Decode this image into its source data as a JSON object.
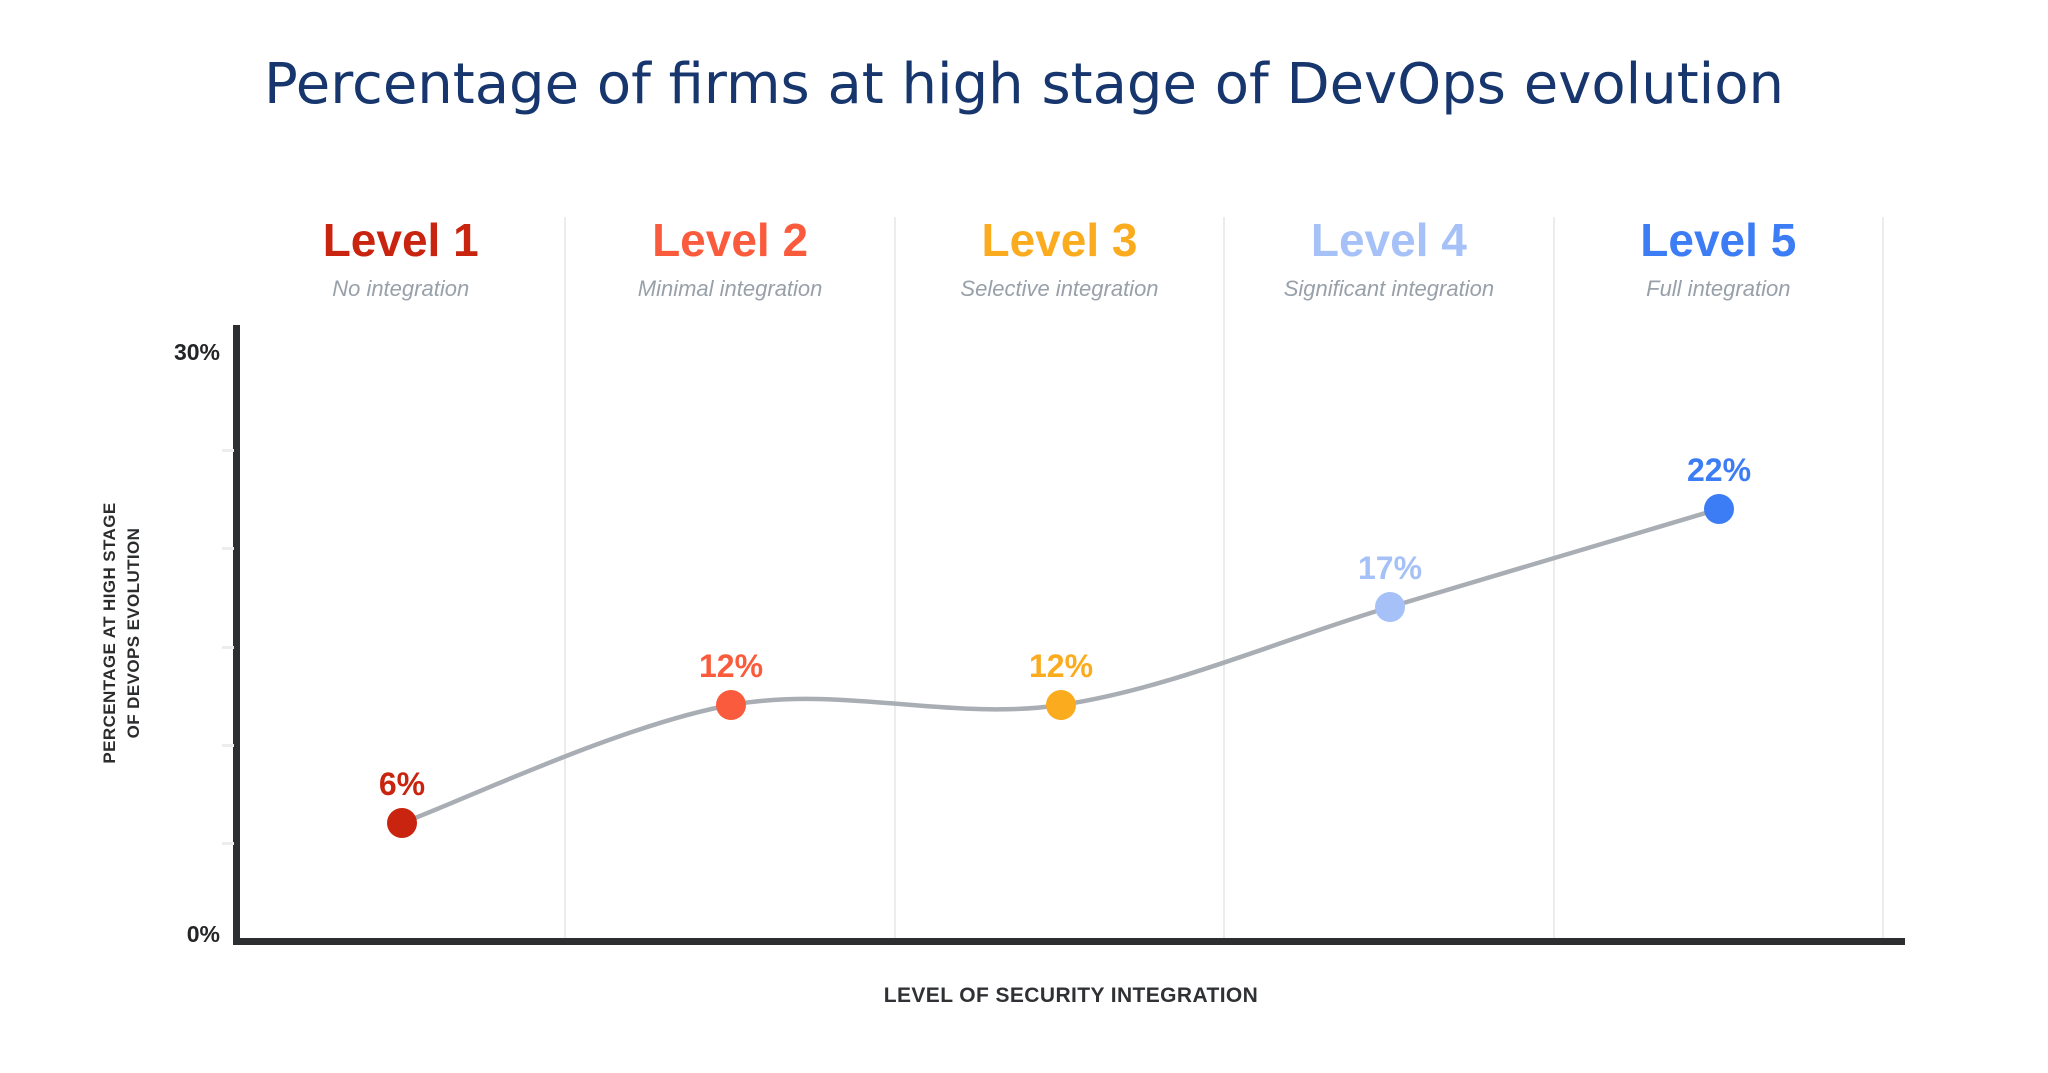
{
  "title": "Percentage of firms at high stage of DevOps evolution",
  "chart_data": {
    "type": "line",
    "title": "Percentage of firms at high stage of DevOps evolution",
    "categories": [
      "Level 1",
      "Level 2",
      "Level 3",
      "Level 4",
      "Level 5"
    ],
    "category_subtitles": [
      "No integration",
      "Minimal integration",
      "Selective integration",
      "Significant integration",
      "Full integration"
    ],
    "values": [
      6,
      12,
      12,
      17,
      22
    ],
    "point_labels": [
      "6%",
      "12%",
      "12%",
      "17%",
      "22%"
    ],
    "point_colors": [
      "#c8240f",
      "#fb5b3d",
      "#fbab1e",
      "#a6c1f8",
      "#3c7cf5"
    ],
    "line_color": "#a9aeb5",
    "xlabel": "LEVEL OF SECURITY INTEGRATION",
    "ylabel": "PERCENTAGE AT HIGH STAGE OF DEVOPS EVOLUTION",
    "ylabel_lines": [
      "PERCENTAGE AT HIGH STAGE",
      "OF DEVOPS EVOLUTION"
    ],
    "ylim": [
      0,
      30
    ],
    "ytick_labels": {
      "top": "30%",
      "bottom": "0%"
    },
    "ytick_minor_values": [
      5,
      10,
      15,
      20,
      25
    ],
    "legend": "none",
    "grid": "vertical-column-dividers"
  },
  "colors": {
    "title": "#17366d",
    "subtitle_gray": "#98a0a9",
    "axis": "#2d2e30",
    "divider": "#ececec",
    "tick_label": "#242527",
    "background": "#ffffff"
  }
}
